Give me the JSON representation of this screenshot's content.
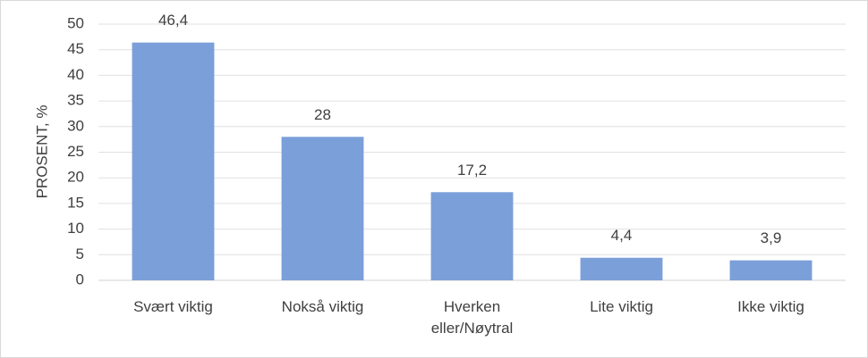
{
  "chart_data": {
    "type": "bar",
    "y_label": "PROSENT, %",
    "categories": [
      "Svært viktig",
      "Nokså viktig",
      "Hverken eller/Nøytral",
      "Lite viktig",
      "Ikke viktig"
    ],
    "values": [
      46.4,
      28,
      17.2,
      4.4,
      3.9
    ],
    "value_labels": [
      "46,4",
      "28",
      "17,2",
      "4,4",
      "3,9"
    ],
    "color": "#7b9fd9",
    "ylim": [
      0,
      50
    ],
    "yticks": [
      0,
      5,
      10,
      15,
      20,
      25,
      30,
      35,
      40,
      45,
      50
    ],
    "grid": true
  }
}
